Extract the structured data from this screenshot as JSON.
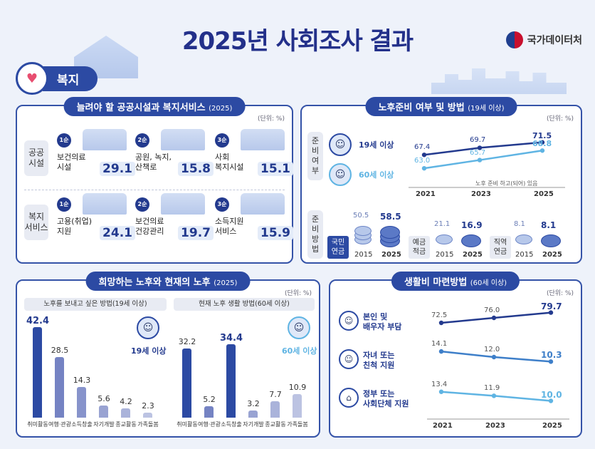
{
  "title": "2025년 사회조사 결과",
  "agency": "국가데이터처",
  "category": "복지",
  "colors": {
    "navy": "#233a8e",
    "blue": "#2c4aa3",
    "light_blue": "#5fb4e3",
    "bar_dark": "#2c4aa3",
    "bar_light": "#c8cdf0"
  },
  "public_facilities": {
    "title": "늘려야 할 공공시설과 복지서비스",
    "year": "(2025)",
    "unit": "(단위: %)",
    "rows": [
      {
        "label_lines": [
          "공공",
          "시설"
        ],
        "items": [
          {
            "rank": "1순위",
            "label_lines": [
              "보건의료",
              "시설"
            ],
            "value": "29.1"
          },
          {
            "rank": "2순위",
            "label_lines": [
              "공원, 녹지,",
              "산책로"
            ],
            "value": "15.8"
          },
          {
            "rank": "3순위",
            "label_lines": [
              "사회",
              "복지시설"
            ],
            "value": "15.1"
          }
        ]
      },
      {
        "label_lines": [
          "복지",
          "서비스"
        ],
        "items": [
          {
            "rank": "1순위",
            "label_lines": [
              "고용(취업)",
              "지원"
            ],
            "value": "24.1"
          },
          {
            "rank": "2순위",
            "label_lines": [
              "보건의료",
              "건강관리"
            ],
            "value": "19.7"
          },
          {
            "rank": "3순위",
            "label_lines": [
              "소득지원",
              "서비스"
            ],
            "value": "15.9"
          }
        ]
      }
    ]
  },
  "retirement_prep": {
    "title": "노후준비 여부 및 방법",
    "subtitle": "(19세 이상)",
    "unit": "(단위: %)",
    "side_label_1": [
      "준",
      "비",
      "여",
      "부"
    ],
    "side_label_2": [
      "준",
      "비",
      "방",
      "법"
    ],
    "note": "노후 준비 하고(되어) 있음",
    "pension_labels": [
      [
        "국민",
        "연금"
      ],
      [
        "예금",
        "적금"
      ],
      [
        "직역",
        "연금"
      ]
    ],
    "pension_years": [
      "2015",
      "2025",
      "2015",
      "2025",
      "2015",
      "2025"
    ]
  },
  "hoped_vs_current": {
    "title": "희망하는 노후와 현재의 노후",
    "year": "(2025)",
    "unit": "(단위: %)",
    "left_header": "노후를 보내고 싶은 방법(19세 이상)",
    "right_header": "현재 노후 생활 방법(60세 이상)",
    "left_tag": "19세 이상",
    "right_tag": "60세 이상"
  },
  "living_costs": {
    "title": "생활비 마련방법",
    "subtitle": "(60세 이상)",
    "unit": "(단위: %)",
    "labels": [
      [
        "본인 및",
        "배우자 부담"
      ],
      [
        "자녀 또는",
        "친척 지원"
      ],
      [
        "정부 또는",
        "사회단체 지원"
      ]
    ]
  },
  "chart_data": [
    {
      "type": "line",
      "title": "노후준비 여부 및 방법 - 준비여부",
      "x": [
        "2021",
        "2023",
        "2025"
      ],
      "series": [
        {
          "name": "19세 이상",
          "values": [
            67.4,
            69.7,
            71.5
          ]
        },
        {
          "name": "60세 이상",
          "values": [
            63.0,
            65.7,
            68.8
          ]
        }
      ]
    },
    {
      "type": "bar",
      "title": "노후준비 방법",
      "categories": [
        "국민연금",
        "예금적금",
        "직역연금"
      ],
      "series": [
        {
          "name": "2015",
          "values": [
            50.5,
            21.1,
            8.1
          ]
        },
        {
          "name": "2025",
          "values": [
            58.5,
            16.9,
            8.1
          ]
        }
      ]
    },
    {
      "type": "bar",
      "title": "노후를 보내고 싶은 방법(19세 이상)",
      "categories": [
        "취미활동",
        "여행·관광",
        "소득창출",
        "자기개발",
        "종교활동",
        "가족돌봄"
      ],
      "values": [
        42.4,
        28.5,
        14.3,
        5.6,
        4.2,
        2.3
      ]
    },
    {
      "type": "bar",
      "title": "현재 노후 생활 방법(60세 이상)",
      "categories": [
        "취미활동",
        "여행·관광",
        "소득창출",
        "자기개발",
        "종교활동",
        "가족돌봄"
      ],
      "values": [
        32.2,
        5.2,
        34.4,
        3.2,
        7.7,
        10.9
      ]
    },
    {
      "type": "line",
      "title": "생활비 마련방법",
      "x": [
        "2021",
        "2023",
        "2025"
      ],
      "series": [
        {
          "name": "본인 및 배우자 부담",
          "values": [
            72.5,
            76.0,
            79.7
          ]
        },
        {
          "name": "자녀 또는 친척 지원",
          "values": [
            14.1,
            12.0,
            10.3
          ]
        },
        {
          "name": "정부 또는 사회단체 지원",
          "values": [
            13.4,
            11.9,
            10.0
          ]
        }
      ]
    }
  ]
}
